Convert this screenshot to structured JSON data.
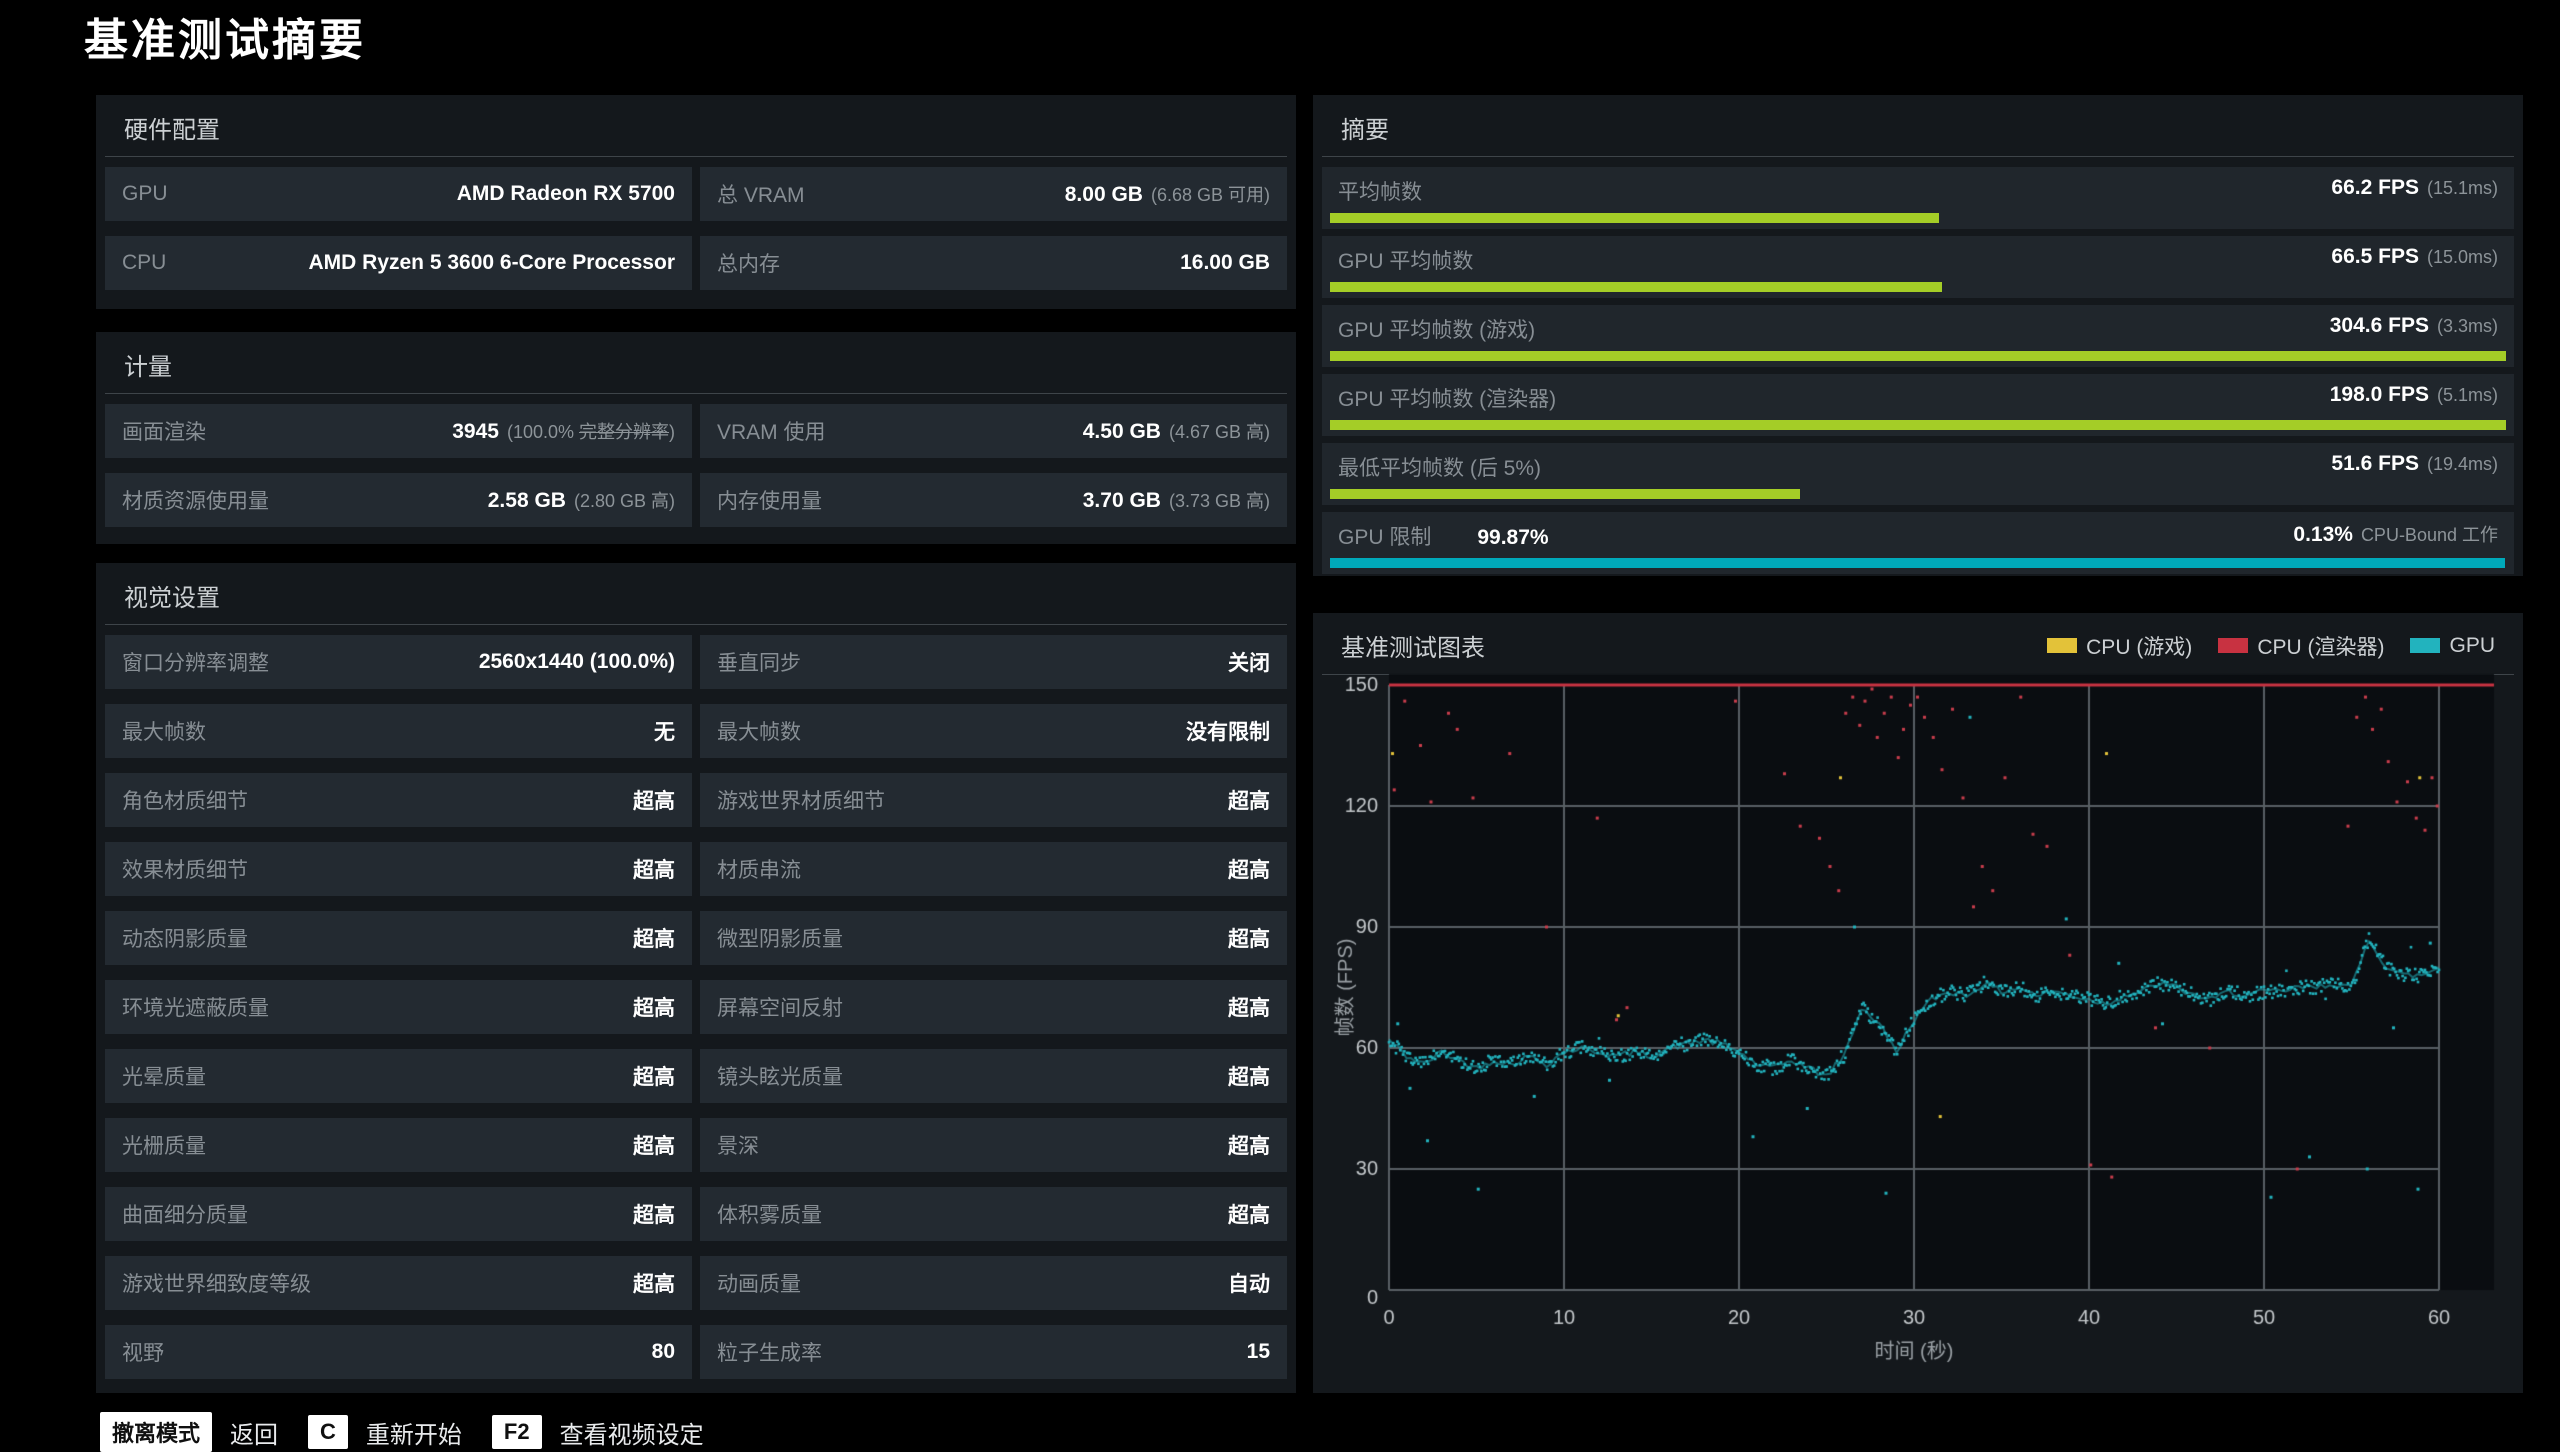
{
  "title": "基准测试摘要",
  "colors": {
    "lime": "#a4cd27",
    "cyan": "#00a9ba",
    "red": "#c83241",
    "yellow": "#e3c239",
    "teal": "#22b3be",
    "grid": "#585f64",
    "tick_text": "#c3c7ca",
    "plot_bg": "#0a0d11"
  },
  "hardware": {
    "header": "硬件配置",
    "rows": [
      [
        {
          "label": "GPU",
          "value": "AMD Radeon RX 5700"
        },
        {
          "label": "总 VRAM",
          "value": "8.00 GB",
          "note": "(6.68 GB 可用)"
        }
      ],
      [
        {
          "label": "CPU",
          "value": "AMD Ryzen 5 3600 6-Core Processor"
        },
        {
          "label": "总内存",
          "value": "16.00 GB"
        }
      ]
    ]
  },
  "metrics": {
    "header": "计量",
    "rows": [
      [
        {
          "label": "画面渲染",
          "value": "3945",
          "note_parts": [
            "(100.0% ",
            "完整分辨率",
            ")"
          ]
        },
        {
          "label": "VRAM 使用",
          "value": "4.50 GB",
          "note": "(4.67 GB 高)"
        }
      ],
      [
        {
          "label": "材质资源使用量",
          "value": "2.58 GB",
          "note": "(2.80 GB 高)"
        },
        {
          "label": "内存使用量",
          "value": "3.70 GB",
          "note": "(3.73 GB 高)"
        }
      ]
    ]
  },
  "visual_settings": {
    "header": "视觉设置",
    "rows": [
      [
        {
          "label": "窗口分辨率调整",
          "value": "2560x1440 (100.0%)"
        },
        {
          "label": "垂直同步",
          "value": "关闭"
        }
      ],
      [
        {
          "label": "最大帧数",
          "value": "无"
        },
        {
          "label": "最大帧数",
          "value": "没有限制"
        }
      ],
      [
        {
          "label": "角色材质细节",
          "value": "超高"
        },
        {
          "label": "游戏世界材质细节",
          "value": "超高"
        }
      ],
      [
        {
          "label": "效果材质细节",
          "value": "超高"
        },
        {
          "label": "材质串流",
          "value": "超高"
        }
      ],
      [
        {
          "label": "动态阴影质量",
          "value": "超高"
        },
        {
          "label": "微型阴影质量",
          "value": "超高"
        }
      ],
      [
        {
          "label": "环境光遮蔽质量",
          "value": "超高"
        },
        {
          "label": "屏幕空间反射",
          "value": "超高"
        }
      ],
      [
        {
          "label": "光晕质量",
          "value": "超高"
        },
        {
          "label": "镜头眩光质量",
          "value": "超高"
        }
      ],
      [
        {
          "label": "光栅质量",
          "value": "超高"
        },
        {
          "label": "景深",
          "value": "超高"
        }
      ],
      [
        {
          "label": "曲面细分质量",
          "value": "超高"
        },
        {
          "label": "体积雾质量",
          "value": "超高"
        }
      ],
      [
        {
          "label": "游戏世界细致度等级",
          "value": "超高"
        },
        {
          "label": "动画质量",
          "value": "自动"
        }
      ],
      [
        {
          "label": "视野",
          "value": "80"
        },
        {
          "label": "粒子生成率",
          "value": "15"
        }
      ]
    ]
  },
  "summary": {
    "header": "摘要",
    "rows": [
      {
        "name": "avg-fps",
        "label": "平均帧数",
        "value": "66.2 FPS",
        "note": "(15.1ms)",
        "bar_pct": 51.8,
        "bar": "lime"
      },
      {
        "name": "gpu-avg-fps",
        "label": "GPU 平均帧数",
        "value": "66.5 FPS",
        "note": "(15.0ms)",
        "bar_pct": 52.0,
        "bar": "lime"
      },
      {
        "name": "gpu-avg-fps-game",
        "label": "GPU 平均帧数 (游戏)",
        "value": "304.6 FPS",
        "note": "(3.3ms)",
        "bar_pct": 100,
        "bar": "lime"
      },
      {
        "name": "gpu-avg-fps-renderer",
        "label": "GPU 平均帧数 (渲染器)",
        "value": "198.0 FPS",
        "note": "(5.1ms)",
        "bar_pct": 100,
        "bar": "lime"
      },
      {
        "name": "low-avg-fps",
        "label": "最低平均帧数 (后 5%)",
        "value": "51.6 FPS",
        "note": "(19.4ms)",
        "bar_pct": 40.0,
        "bar": "lime"
      },
      {
        "name": "gpu-bound",
        "label": "GPU 限制",
        "label_value": "99.87%",
        "value": "0.13%",
        "note": "CPU-Bound 工作",
        "bar_pct": 99.9,
        "bar": "cyan"
      }
    ]
  },
  "chart": {
    "header": "基准测试图表",
    "legend": [
      {
        "name": "cpu-game",
        "label": "CPU (游戏)",
        "color": "yellow"
      },
      {
        "name": "cpu-renderer",
        "label": "CPU (渲染器)",
        "color": "red"
      },
      {
        "name": "gpu",
        "label": "GPU",
        "color": "teal"
      }
    ]
  },
  "chart_data": {
    "type": "scatter",
    "title": "基准测试图表",
    "xlabel": "时间 (秒)",
    "ylabel": "帧数 (FPS)",
    "xlim": [
      0,
      60
    ],
    "ylim": [
      0,
      150
    ],
    "xticks": [
      0,
      10,
      20,
      30,
      40,
      50,
      60
    ],
    "yticks": [
      0,
      30,
      60,
      90,
      120,
      150
    ],
    "grid": true,
    "legend_position": "top-right",
    "cap_line": {
      "y": 150,
      "color": "#c83241",
      "note": "CPU series clipped at 150 FPS"
    },
    "series": [
      {
        "name": "CPU (游戏)",
        "color": "#e3c239",
        "avg_fps": 304.6,
        "clipped_at": 150,
        "points": [
          [
            0.2,
            133
          ],
          [
            13.1,
            68
          ],
          [
            25.8,
            127
          ],
          [
            31.5,
            43
          ],
          [
            41.0,
            133
          ],
          [
            58.9,
            127
          ]
        ]
      },
      {
        "name": "CPU (渲染器)",
        "color": "#c93d4c",
        "avg_fps": 198.0,
        "clipped_at": 150,
        "points": [
          [
            0.3,
            124
          ],
          [
            0.9,
            146
          ],
          [
            1.8,
            135
          ],
          [
            2.4,
            121
          ],
          [
            3.4,
            143
          ],
          [
            3.9,
            139
          ],
          [
            4.8,
            122
          ],
          [
            6.9,
            133
          ],
          [
            9.0,
            90
          ],
          [
            11.9,
            117
          ],
          [
            13.0,
            67
          ],
          [
            13.6,
            70
          ],
          [
            19.8,
            146
          ],
          [
            22.6,
            128
          ],
          [
            23.5,
            115
          ],
          [
            24.6,
            112
          ],
          [
            25.2,
            105
          ],
          [
            25.7,
            99
          ],
          [
            26.1,
            143
          ],
          [
            26.5,
            147
          ],
          [
            26.9,
            140
          ],
          [
            27.2,
            146
          ],
          [
            27.6,
            149
          ],
          [
            27.9,
            137
          ],
          [
            28.3,
            143
          ],
          [
            28.7,
            147
          ],
          [
            29.1,
            132
          ],
          [
            29.4,
            139
          ],
          [
            29.8,
            145
          ],
          [
            30.2,
            147
          ],
          [
            30.6,
            142
          ],
          [
            31.1,
            137
          ],
          [
            31.6,
            129
          ],
          [
            32.2,
            144
          ],
          [
            32.8,
            122
          ],
          [
            33.4,
            95
          ],
          [
            33.9,
            105
          ],
          [
            34.5,
            99
          ],
          [
            35.2,
            127
          ],
          [
            36.1,
            147
          ],
          [
            36.8,
            113
          ],
          [
            37.6,
            110
          ],
          [
            38.9,
            83
          ],
          [
            40.1,
            31
          ],
          [
            41.3,
            28
          ],
          [
            43.8,
            65
          ],
          [
            46.9,
            60
          ],
          [
            51.9,
            30
          ],
          [
            54.8,
            115
          ],
          [
            55.3,
            142
          ],
          [
            55.8,
            147
          ],
          [
            56.2,
            139
          ],
          [
            56.7,
            144
          ],
          [
            57.1,
            131
          ],
          [
            57.6,
            121
          ],
          [
            58.2,
            126
          ],
          [
            58.7,
            117
          ],
          [
            59.2,
            114
          ],
          [
            59.6,
            127
          ],
          [
            59.9,
            120
          ]
        ]
      },
      {
        "name": "GPU",
        "color": "#22b3be",
        "avg_fps": 66.5,
        "x_step": 1,
        "values": [
          62,
          58,
          56,
          59,
          57,
          55,
          57,
          56,
          58,
          56,
          59,
          60,
          59,
          58,
          59,
          58,
          60,
          61,
          62,
          61,
          59,
          56,
          55,
          57,
          55,
          53,
          58,
          70,
          66,
          59,
          67,
          72,
          74,
          73,
          76,
          74,
          75,
          73,
          74,
          73,
          72,
          71,
          73,
          74,
          76,
          75,
          73,
          72,
          74,
          73,
          74,
          74,
          75,
          75,
          76,
          75,
          87,
          80,
          78,
          78,
          80
        ],
        "outliers": [
          [
            0.5,
            66
          ],
          [
            1.2,
            50
          ],
          [
            2.2,
            37
          ],
          [
            5.1,
            25
          ],
          [
            8.3,
            48
          ],
          [
            12.6,
            52
          ],
          [
            20.8,
            38
          ],
          [
            23.9,
            45
          ],
          [
            26.6,
            90
          ],
          [
            28.4,
            24
          ],
          [
            33.2,
            142
          ],
          [
            38.7,
            92
          ],
          [
            41.7,
            81
          ],
          [
            44.2,
            66
          ],
          [
            50.4,
            23
          ],
          [
            52.6,
            33
          ],
          [
            55.9,
            30
          ],
          [
            57.4,
            65
          ],
          [
            58.8,
            25
          ],
          [
            59.5,
            86
          ]
        ]
      }
    ]
  },
  "footer": {
    "items": [
      {
        "name": "back",
        "badge": "撤离模式",
        "label": "返回"
      },
      {
        "name": "restart",
        "badge": "C",
        "label": "重新开始"
      },
      {
        "name": "video-settings",
        "badge": "F2",
        "label": "查看视频设定"
      }
    ]
  }
}
